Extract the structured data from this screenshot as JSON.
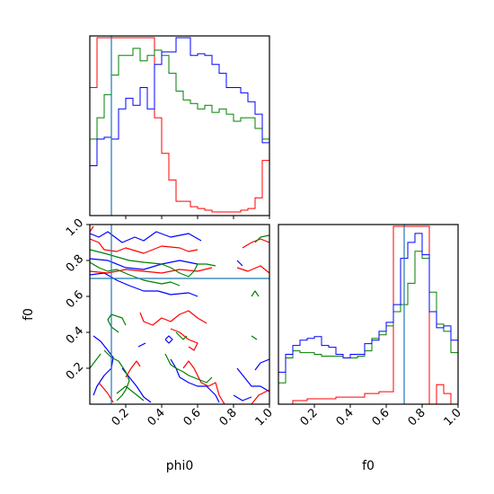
{
  "chart_data": [
    {
      "panel": "phi0-marginal",
      "type": "histogram",
      "x_range": [
        0.0,
        1.0
      ],
      "bin_width": 0.04,
      "truth": 0.12,
      "series": [
        {
          "color": "#ff0000",
          "values": [
            0.72,
            1.0,
            1.0,
            1.0,
            1.0,
            1.0,
            1.0,
            1.0,
            1.0,
            0.55,
            0.35,
            0.2,
            0.08,
            0.08,
            0.05,
            0.04,
            0.03,
            0.02,
            0.02,
            0.02,
            0.02,
            0.03,
            0.04,
            0.1,
            0.31
          ]
        },
        {
          "color": "#008000",
          "values": [
            0.43,
            0.55,
            0.68,
            0.79,
            0.9,
            0.9,
            0.94,
            0.87,
            0.9,
            0.93,
            0.9,
            0.8,
            0.7,
            0.65,
            0.63,
            0.6,
            0.62,
            0.58,
            0.6,
            0.57,
            0.53,
            0.55,
            0.55,
            0.49,
            0.43
          ]
        },
        {
          "color": "#0000ff",
          "values": [
            0.28,
            0.43,
            0.44,
            0.43,
            0.6,
            0.66,
            0.62,
            0.72,
            0.6,
            0.85,
            0.92,
            0.92,
            1.0,
            1.0,
            0.9,
            0.91,
            0.9,
            0.85,
            0.8,
            0.72,
            0.72,
            0.69,
            0.64,
            0.57,
            0.41
          ]
        }
      ]
    },
    {
      "panel": "phi0-f0-joint",
      "type": "contour",
      "x_range": [
        0.0,
        1.0
      ],
      "y_range": [
        0.0,
        1.0
      ],
      "xticks": [
        "0.2",
        "0.4",
        "0.6",
        "0.8",
        "1.0"
      ],
      "yticks": [
        "0.2",
        "0.4",
        "0.6",
        "0.8",
        "1.0"
      ],
      "xlabel": "phi0",
      "ylabel": "f0",
      "truth": [
        0.12,
        0.7
      ],
      "series": [
        {
          "color": "#0000ff",
          "lines": [
            [
              [
                0,
                0.95
              ],
              [
                0.05,
                0.93
              ],
              [
                0.1,
                0.96
              ],
              [
                0.18,
                0.9
              ],
              [
                0.25,
                0.93
              ],
              [
                0.3,
                0.91
              ],
              [
                0.37,
                0.96
              ],
              [
                0.45,
                0.93
              ],
              [
                0.55,
                0.95
              ],
              [
                0.62,
                0.91
              ]
            ],
            [
              [
                0,
                0.81
              ],
              [
                0.1,
                0.8
              ],
              [
                0.2,
                0.76
              ],
              [
                0.3,
                0.75
              ],
              [
                0.4,
                0.78
              ],
              [
                0.5,
                0.8
              ],
              [
                0.6,
                0.78
              ]
            ],
            [
              [
                0,
                0.72
              ],
              [
                0.08,
                0.73
              ],
              [
                0.15,
                0.69
              ],
              [
                0.22,
                0.66
              ],
              [
                0.3,
                0.63
              ],
              [
                0.38,
                0.63
              ],
              [
                0.45,
                0.61
              ],
              [
                0.55,
                0.62
              ],
              [
                0.6,
                0.6
              ]
            ],
            [
              [
                0.02,
                0.38
              ],
              [
                0.06,
                0.35
              ],
              [
                0.1,
                0.3
              ],
              [
                0.13,
                0.26
              ],
              [
                0.12,
                0.2
              ],
              [
                0.08,
                0.16
              ],
              [
                0.04,
                0.1
              ],
              [
                0.02,
                0.05
              ]
            ],
            [
              [
                0.18,
                0.2
              ],
              [
                0.22,
                0.15
              ],
              [
                0.26,
                0.1
              ],
              [
                0.3,
                0.04
              ],
              [
                0.34,
                0.01
              ]
            ],
            [
              [
                0.45,
                0.25
              ],
              [
                0.48,
                0.2
              ],
              [
                0.5,
                0.15
              ],
              [
                0.55,
                0.12
              ],
              [
                0.6,
                0.1
              ],
              [
                0.65,
                0.1
              ],
              [
                0.7,
                0.05
              ],
              [
                0.72,
                0.01
              ]
            ],
            [
              [
                0.82,
                0.2
              ],
              [
                0.86,
                0.15
              ],
              [
                0.9,
                0.1
              ],
              [
                0.95,
                0.1
              ],
              [
                1.0,
                0.07
              ]
            ],
            [
              [
                0.8,
                0.05
              ],
              [
                0.85,
                0.02
              ],
              [
                0.9,
                0.04
              ]
            ],
            [
              [
                0.92,
                0.19
              ],
              [
                0.95,
                0.23
              ],
              [
                1.0,
                0.25
              ]
            ],
            [
              [
                0.27,
                0.32
              ],
              [
                0.31,
                0.34
              ]
            ],
            [
              [
                0.42,
                0.36
              ],
              [
                0.44,
                0.34
              ],
              [
                0.46,
                0.36
              ],
              [
                0.44,
                0.38
              ],
              [
                0.42,
                0.36
              ]
            ],
            [
              [
                0.85,
                0.77
              ],
              [
                0.82,
                0.8
              ]
            ]
          ]
        },
        {
          "color": "#ff0000",
          "lines": [
            [
              [
                0,
                0.92
              ],
              [
                0.05,
                0.9
              ],
              [
                0.08,
                0.86
              ],
              [
                0.15,
                0.85
              ],
              [
                0.2,
                0.87
              ],
              [
                0.3,
                0.84
              ],
              [
                0.4,
                0.88
              ],
              [
                0.5,
                0.87
              ],
              [
                0.55,
                0.85
              ],
              [
                0.6,
                0.86
              ]
            ],
            [
              [
                0,
                0.74
              ],
              [
                0.1,
                0.73
              ],
              [
                0.2,
                0.75
              ],
              [
                0.3,
                0.74
              ],
              [
                0.4,
                0.73
              ],
              [
                0.5,
                0.75
              ],
              [
                0.6,
                0.74
              ],
              [
                0.68,
                0.76
              ]
            ],
            [
              [
                0.85,
                0.87
              ],
              [
                0.9,
                0.9
              ],
              [
                0.95,
                0.92
              ],
              [
                1.0,
                0.9
              ]
            ],
            [
              [
                0.82,
                0.76
              ],
              [
                0.88,
                0.74
              ],
              [
                0.95,
                0.77
              ],
              [
                1.0,
                0.73
              ]
            ],
            [
              [
                0.28,
                0.51
              ],
              [
                0.3,
                0.46
              ],
              [
                0.35,
                0.44
              ],
              [
                0.4,
                0.48
              ],
              [
                0.45,
                0.46
              ],
              [
                0.5,
                0.5
              ],
              [
                0.55,
                0.52
              ],
              [
                0.6,
                0.48
              ],
              [
                0.65,
                0.45
              ]
            ],
            [
              [
                0.45,
                0.42
              ],
              [
                0.5,
                0.4
              ],
              [
                0.55,
                0.36
              ],
              [
                0.6,
                0.34
              ],
              [
                0.58,
                0.3
              ],
              [
                0.55,
                0.32
              ]
            ],
            [
              [
                0.2,
                0.15
              ],
              [
                0.23,
                0.2
              ],
              [
                0.26,
                0.24
              ],
              [
                0.28,
                0.21
              ]
            ],
            [
              [
                0.52,
                0.2
              ],
              [
                0.55,
                0.24
              ],
              [
                0.58,
                0.2
              ],
              [
                0.6,
                0.16
              ],
              [
                0.62,
                0.12
              ],
              [
                0.66,
                0.1
              ],
              [
                0.7,
                0.12
              ],
              [
                0.72,
                0.05
              ],
              [
                0.75,
                0.0
              ]
            ],
            [
              [
                0.05,
                0.12
              ],
              [
                0.1,
                0.06
              ],
              [
                0.13,
                0.01
              ]
            ],
            [
              [
                0.9,
                0.0
              ],
              [
                0.94,
                0.05
              ],
              [
                1.0,
                0.08
              ]
            ],
            [
              [
                0.0,
                0.96
              ],
              [
                0.02,
                0.99
              ]
            ]
          ]
        },
        {
          "color": "#008000",
          "lines": [
            [
              [
                0,
                0.86
              ],
              [
                0.08,
                0.84
              ],
              [
                0.15,
                0.82
              ],
              [
                0.22,
                0.8
              ],
              [
                0.3,
                0.79
              ],
              [
                0.4,
                0.78
              ],
              [
                0.45,
                0.76
              ],
              [
                0.5,
                0.73
              ],
              [
                0.55,
                0.71
              ],
              [
                0.58,
                0.74
              ],
              [
                0.6,
                0.78
              ],
              [
                0.65,
                0.78
              ],
              [
                0.7,
                0.77
              ]
            ],
            [
              [
                0,
                0.79
              ],
              [
                0.05,
                0.76
              ],
              [
                0.1,
                0.74
              ],
              [
                0.15,
                0.75
              ],
              [
                0.22,
                0.72
              ],
              [
                0.3,
                0.69
              ],
              [
                0.35,
                0.68
              ],
              [
                0.4,
                0.67
              ],
              [
                0.45,
                0.68
              ],
              [
                0.5,
                0.66
              ]
            ],
            [
              [
                0.08,
                0.3
              ],
              [
                0.12,
                0.26
              ],
              [
                0.16,
                0.24
              ],
              [
                0.2,
                0.18
              ],
              [
                0.22,
                0.13
              ],
              [
                0.2,
                0.08
              ],
              [
                0.18,
                0.05
              ],
              [
                0.15,
                0.02
              ]
            ],
            [
              [
                0.0,
                0.2
              ],
              [
                0.03,
                0.24
              ],
              [
                0.06,
                0.28
              ]
            ],
            [
              [
                0.42,
                0.28
              ],
              [
                0.45,
                0.22
              ],
              [
                0.48,
                0.2
              ],
              [
                0.52,
                0.18
              ],
              [
                0.55,
                0.16
              ],
              [
                0.6,
                0.14
              ],
              [
                0.65,
                0.12
              ],
              [
                0.68,
                0.15
              ]
            ],
            [
              [
                0.48,
                0.4
              ],
              [
                0.5,
                0.38
              ],
              [
                0.52,
                0.36
              ],
              [
                0.54,
                0.38
              ]
            ],
            [
              [
                0.9,
                0.6
              ],
              [
                0.92,
                0.63
              ],
              [
                0.94,
                0.6
              ]
            ],
            [
              [
                0.9,
                0.38
              ],
              [
                0.93,
                0.36
              ]
            ],
            [
              [
                0.16,
                0.4
              ],
              [
                0.12,
                0.43
              ],
              [
                0.1,
                0.47
              ],
              [
                0.12,
                0.5
              ],
              [
                0.18,
                0.48
              ],
              [
                0.2,
                0.44
              ]
            ],
            [
              [
                0.92,
                0.9
              ],
              [
                0.95,
                0.93
              ],
              [
                1.0,
                0.94
              ]
            ],
            [
              [
                0.15,
                0.06
              ],
              [
                0.2,
                0.1
              ],
              [
                0.25,
                0.06
              ],
              [
                0.3,
                0.02
              ]
            ]
          ]
        }
      ]
    },
    {
      "panel": "f0-marginal",
      "type": "histogram",
      "x_range": [
        0.0,
        1.0
      ],
      "bin_width": 0.04,
      "xticks": [
        "0.2",
        "0.4",
        "0.6",
        "0.8",
        "1.0"
      ],
      "xlabel": "f0",
      "truth": 0.7,
      "series": [
        {
          "color": "#ff0000",
          "values": [
            0,
            0,
            0.02,
            0.02,
            0.03,
            0.03,
            0.03,
            0.03,
            0.04,
            0.04,
            0.04,
            0.04,
            0.06,
            0.06,
            0.07,
            0.07,
            1.0,
            1.0,
            1.0,
            1.0,
            1.0,
            0,
            0.11,
            0.06,
            0
          ]
        },
        {
          "color": "#008000",
          "values": [
            0.12,
            0.26,
            0.3,
            0.29,
            0.29,
            0.28,
            0.27,
            0.27,
            0.27,
            0.26,
            0.26,
            0.27,
            0.3,
            0.37,
            0.39,
            0.44,
            0.52,
            0.56,
            0.68,
            0.86,
            0.82,
            0.63,
            0.45,
            0.41,
            0.29
          ]
        },
        {
          "color": "#0000ff",
          "values": [
            0.18,
            0.28,
            0.33,
            0.36,
            0.37,
            0.38,
            0.33,
            0.32,
            0.28,
            0.26,
            0.28,
            0.28,
            0.34,
            0.36,
            0.41,
            0.46,
            0.56,
            0.82,
            0.91,
            0.96,
            0.84,
            0.52,
            0.43,
            0.44,
            0.36
          ]
        }
      ]
    }
  ]
}
